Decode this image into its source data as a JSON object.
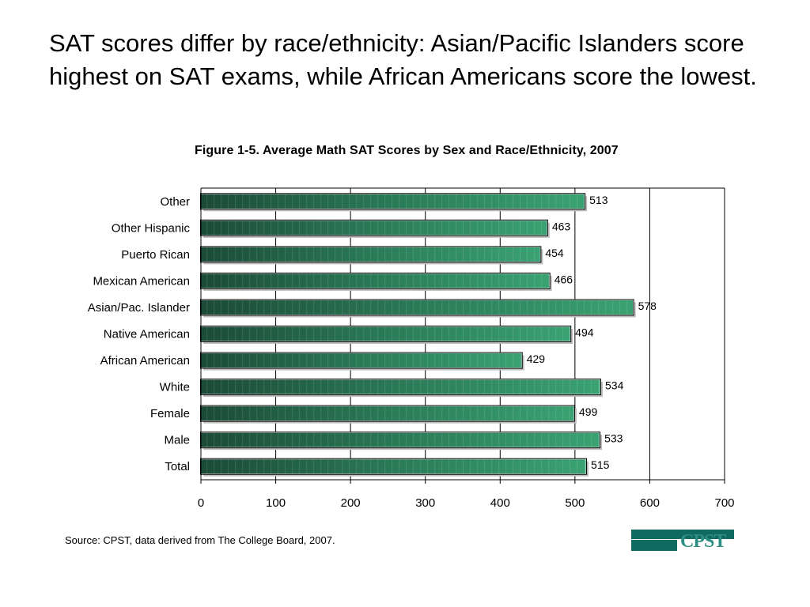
{
  "headline": "SAT scores differ by race/ethnicity: Asian/Pacific Islanders score highest on SAT exams, while African Americans score the lowest.",
  "source": "Source: CPST, data derived from The College Board, 2007.",
  "logo_text": "CPST",
  "colors": {
    "bar_dark": "#1b4a37",
    "bar_light": "#3aa272",
    "axis": "#000000"
  },
  "chart_data": {
    "type": "bar",
    "orientation": "horizontal",
    "title": "Figure 1-5. Average Math SAT Scores by Sex and Race/Ethnicity, 2007",
    "xlabel": "",
    "ylabel": "",
    "xlim": [
      0,
      700
    ],
    "xticks": [
      0,
      100,
      200,
      300,
      400,
      500,
      600,
      700
    ],
    "grid": "vertical",
    "categories": [
      "Other",
      "Other Hispanic",
      "Puerto Rican",
      "Mexican American",
      "Asian/Pac. Islander",
      "Native American",
      "African American",
      "White",
      "Female",
      "Male",
      "Total"
    ],
    "values": [
      513,
      463,
      454,
      466,
      578,
      494,
      429,
      534,
      499,
      533,
      515
    ]
  }
}
